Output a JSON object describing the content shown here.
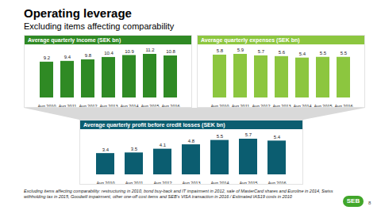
{
  "title": "Operating leverage",
  "subtitle": "Excluding items affecting comparability",
  "chart_data": [
    {
      "type": "bar",
      "title": "Average quarterly income (SEK bn)",
      "categories": [
        "Avg 2010",
        "Avg 2011",
        "Avg 2012",
        "Avg 2013",
        "Avg 2014",
        "Avg 2015",
        "Avg 2016"
      ],
      "values": [
        9.2,
        9.4,
        9.8,
        10.4,
        10.9,
        11.2,
        10.8
      ],
      "color": "#2f8a24",
      "data_labels": true,
      "tick_labels": "x"
    },
    {
      "type": "bar",
      "title": "Average quarterly expenses (SEK bn)",
      "categories": [
        "Avg 2010",
        "Avg 2011",
        "Avg 2012",
        "Avg 2013",
        "Avg 2014",
        "Avg 2015",
        "Avg 2016"
      ],
      "values": [
        5.8,
        5.9,
        5.7,
        5.6,
        5.4,
        5.5,
        5.5
      ],
      "color": "#8cc63f",
      "data_labels": true,
      "tick_labels": "x"
    },
    {
      "type": "bar",
      "title": "Average quarterly profit before credit losses (SEK bn)",
      "categories": [
        "Avg 2010",
        "Avg 2011",
        "Avg 2012",
        "Avg 2013",
        "Avg 2014",
        "Avg 2015",
        "Avg 2016"
      ],
      "values": [
        3.4,
        3.5,
        4.1,
        4.8,
        5.5,
        5.7,
        5.4
      ],
      "color": "#0b5d70",
      "data_labels": true,
      "tick_labels": "x"
    }
  ],
  "footnote": "Excluding items affecting comparability: restructuring in 2010, bond buy-back and IT impairment in 2012, sale of MasterCard shares and Euroline in 2014, Swiss withholding tax in 2015, Goodwill impairment, other one-off cost items and SEB's VISA transaction in 2016 / Estimated IAS19 costs in 2010",
  "logo": "SEB",
  "page": "8"
}
